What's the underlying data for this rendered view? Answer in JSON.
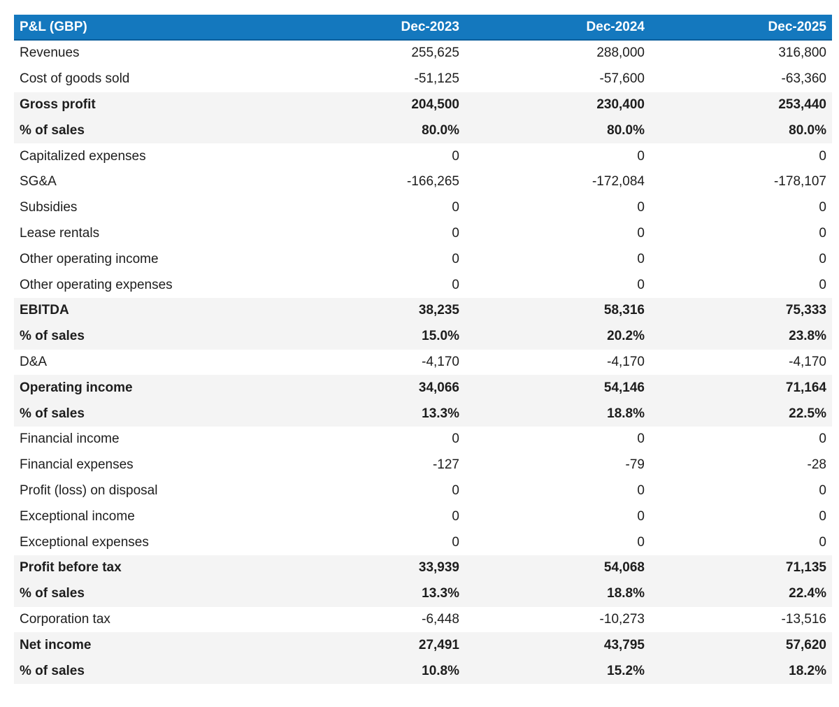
{
  "colors": {
    "header_bg": "#1478be",
    "header_border": "#0c5f9c",
    "header_text": "#ffffff",
    "band_bg": "#f4f4f4",
    "body_text": "#1d1d1d"
  },
  "table": {
    "title_cell": "P&L (GBP)",
    "columns": [
      "Dec-2023",
      "Dec-2024",
      "Dec-2025"
    ],
    "rows": [
      {
        "label": "Revenues",
        "values": [
          "255,625",
          "288,000",
          "316,800"
        ],
        "emphasis": false
      },
      {
        "label": "Cost of goods sold",
        "values": [
          "-51,125",
          "-57,600",
          "-63,360"
        ],
        "emphasis": false
      },
      {
        "label": "Gross profit",
        "values": [
          "204,500",
          "230,400",
          "253,440"
        ],
        "emphasis": true
      },
      {
        "label": "% of sales",
        "values": [
          "80.0%",
          "80.0%",
          "80.0%"
        ],
        "emphasis": true
      },
      {
        "label": "Capitalized expenses",
        "values": [
          "0",
          "0",
          "0"
        ],
        "emphasis": false
      },
      {
        "label": "SG&A",
        "values": [
          "-166,265",
          "-172,084",
          "-178,107"
        ],
        "emphasis": false
      },
      {
        "label": "Subsidies",
        "values": [
          "0",
          "0",
          "0"
        ],
        "emphasis": false
      },
      {
        "label": "Lease rentals",
        "values": [
          "0",
          "0",
          "0"
        ],
        "emphasis": false
      },
      {
        "label": "Other operating income",
        "values": [
          "0",
          "0",
          "0"
        ],
        "emphasis": false
      },
      {
        "label": "Other operating expenses",
        "values": [
          "0",
          "0",
          "0"
        ],
        "emphasis": false
      },
      {
        "label": "EBITDA",
        "values": [
          "38,235",
          "58,316",
          "75,333"
        ],
        "emphasis": true
      },
      {
        "label": "% of sales",
        "values": [
          "15.0%",
          "20.2%",
          "23.8%"
        ],
        "emphasis": true
      },
      {
        "label": "D&A",
        "values": [
          "-4,170",
          "-4,170",
          "-4,170"
        ],
        "emphasis": false
      },
      {
        "label": "Operating income",
        "values": [
          "34,066",
          "54,146",
          "71,164"
        ],
        "emphasis": true
      },
      {
        "label": "% of sales",
        "values": [
          "13.3%",
          "18.8%",
          "22.5%"
        ],
        "emphasis": true
      },
      {
        "label": "Financial income",
        "values": [
          "0",
          "0",
          "0"
        ],
        "emphasis": false
      },
      {
        "label": "Financial expenses",
        "values": [
          "-127",
          "-79",
          "-28"
        ],
        "emphasis": false
      },
      {
        "label": "Profit (loss) on disposal",
        "values": [
          "0",
          "0",
          "0"
        ],
        "emphasis": false
      },
      {
        "label": "Exceptional income",
        "values": [
          "0",
          "0",
          "0"
        ],
        "emphasis": false
      },
      {
        "label": "Exceptional expenses",
        "values": [
          "0",
          "0",
          "0"
        ],
        "emphasis": false
      },
      {
        "label": "Profit before tax",
        "values": [
          "33,939",
          "54,068",
          "71,135"
        ],
        "emphasis": true
      },
      {
        "label": "% of sales",
        "values": [
          "13.3%",
          "18.8%",
          "22.4%"
        ],
        "emphasis": true
      },
      {
        "label": "Corporation tax",
        "values": [
          "-6,448",
          "-10,273",
          "-13,516"
        ],
        "emphasis": false
      },
      {
        "label": "Net income",
        "values": [
          "27,491",
          "43,795",
          "57,620"
        ],
        "emphasis": true
      },
      {
        "label": "% of sales",
        "values": [
          "10.8%",
          "15.2%",
          "18.2%"
        ],
        "emphasis": true
      }
    ]
  }
}
